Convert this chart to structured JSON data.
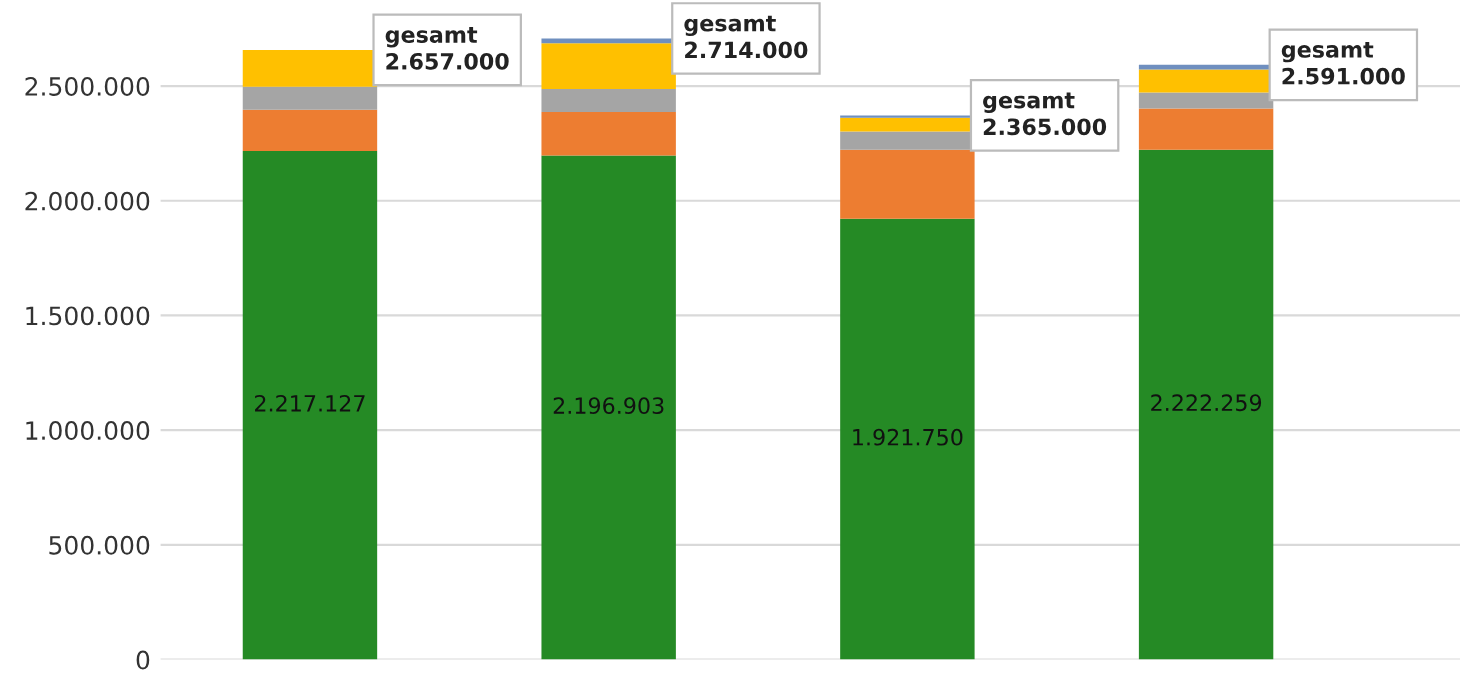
{
  "chart_data": {
    "type": "bar",
    "stacked": true,
    "categories": [
      null,
      null,
      null,
      null
    ],
    "series": [
      {
        "color": "#258a25",
        "values": [
          2217127,
          2196903,
          1921750,
          2222259
        ],
        "value_labels": [
          "2.217.127",
          "2.196.903",
          "1.921.750",
          "2.222.259"
        ]
      },
      {
        "color": "#ed7d31",
        "values": [
          180000,
          190000,
          300000,
          180000
        ]
      },
      {
        "color": "#a5a5a5",
        "values": [
          100000,
          100000,
          80000,
          70000
        ]
      },
      {
        "color": "#ffc000",
        "values": [
          160000,
          200000,
          60000,
          100000
        ]
      },
      {
        "color": "#6f8fbf",
        "values": [
          0,
          20000,
          10000,
          20000
        ]
      }
    ],
    "totals": [
      "gesamt\n2.657.000",
      "gesamt\n2.714.000",
      "gesamt\n2.365.000",
      "gesamt\n2.591.000"
    ],
    "ylim": [
      0,
      2875000
    ],
    "yticks": [
      0,
      {
        "value": 500000,
        "label": "500.000"
      },
      {
        "value": 1000000,
        "label": "1.000.000"
      },
      {
        "value": 1500000,
        "label": "1.500.000"
      },
      {
        "value": 2000000,
        "label": "2.000.000"
      },
      {
        "value": 2500000,
        "label": "2.500.000"
      }
    ],
    "grid": "y",
    "tick_labels": "y"
  }
}
